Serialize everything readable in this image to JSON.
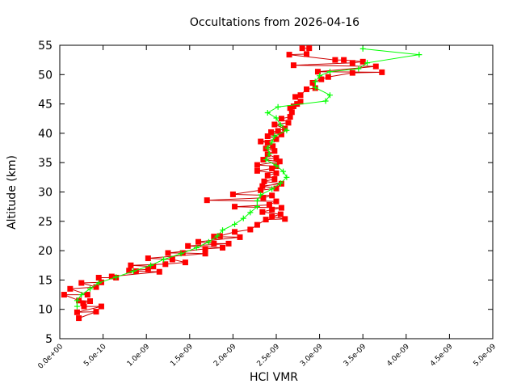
{
  "chart_data": {
    "type": "scatter",
    "title": "Occultations from 2026-04-16",
    "xlabel": "HCl VMR",
    "ylabel": "Altitude (km)",
    "xlim": [
      0,
      5e-09
    ],
    "ylim": [
      5,
      55
    ],
    "x_ticks": [
      "0.0e+00",
      "5.0e-10",
      "1.0e-09",
      "1.5e-09",
      "2.0e-09",
      "2.5e-09",
      "3.0e-09",
      "3.5e-09",
      "4.0e-09",
      "4.5e-09",
      "5.0e-09"
    ],
    "y_ticks": [
      "5",
      "10",
      "15",
      "20",
      "25",
      "30",
      "35",
      "40",
      "45",
      "50",
      "55"
    ],
    "grid": false,
    "legend": "none",
    "series": [
      {
        "marker": "square",
        "color": "#ff0000",
        "line_color": "#cc0000",
        "points": [
          [
            2.8e-09,
            54.5
          ],
          [
            2.88e-09,
            54.5
          ],
          [
            2.85e-09,
            53.5
          ],
          [
            2.65e-09,
            53.4
          ],
          [
            3.18e-09,
            52.5
          ],
          [
            3.28e-09,
            52.5
          ],
          [
            3.5e-09,
            52.2
          ],
          [
            3.38e-09,
            52.0
          ],
          [
            2.7e-09,
            51.6
          ],
          [
            3.65e-09,
            51.4
          ],
          [
            2.98e-09,
            50.5
          ],
          [
            3.72e-09,
            50.4
          ],
          [
            3.38e-09,
            50.3
          ],
          [
            3.1e-09,
            49.6
          ],
          [
            3.02e-09,
            49.2
          ],
          [
            2.92e-09,
            48.6
          ],
          [
            2.95e-09,
            47.7
          ],
          [
            2.85e-09,
            47.5
          ],
          [
            2.78e-09,
            46.5
          ],
          [
            2.72e-09,
            46.2
          ],
          [
            2.78e-09,
            45.4
          ],
          [
            2.74e-09,
            45.0
          ],
          [
            2.7e-09,
            44.6
          ],
          [
            2.66e-09,
            44.3
          ],
          [
            2.68e-09,
            43.6
          ],
          [
            2.66e-09,
            42.8
          ],
          [
            2.56e-09,
            42.5
          ],
          [
            2.64e-09,
            41.8
          ],
          [
            2.48e-09,
            41.5
          ],
          [
            2.6e-09,
            40.8
          ],
          [
            2.52e-09,
            40.4
          ],
          [
            2.44e-09,
            40.2
          ],
          [
            2.56e-09,
            39.8
          ],
          [
            2.4e-09,
            39.5
          ],
          [
            2.5e-09,
            39.0
          ],
          [
            2.32e-09,
            38.6
          ],
          [
            2.4e-09,
            38.4
          ],
          [
            2.46e-09,
            37.8
          ],
          [
            2.38e-09,
            37.4
          ],
          [
            2.48e-09,
            37.0
          ],
          [
            2.4e-09,
            36.4
          ],
          [
            2.5e-09,
            35.8
          ],
          [
            2.35e-09,
            35.5
          ],
          [
            2.54e-09,
            35.2
          ],
          [
            2.28e-09,
            34.6
          ],
          [
            2.5e-09,
            34.4
          ],
          [
            2.45e-09,
            34.0
          ],
          [
            2.28e-09,
            33.6
          ],
          [
            2.5e-09,
            33.2
          ],
          [
            2.4e-09,
            32.8
          ],
          [
            2.48e-09,
            32.2
          ],
          [
            2.36e-09,
            31.8
          ],
          [
            2.56e-09,
            31.4
          ],
          [
            2.34e-09,
            31.0
          ],
          [
            2.5e-09,
            30.6
          ],
          [
            2.32e-09,
            30.3
          ],
          [
            2e-09,
            29.6
          ],
          [
            2.45e-09,
            29.4
          ],
          [
            2.35e-09,
            29.0
          ],
          [
            1.7e-09,
            28.6
          ],
          [
            2.5e-09,
            28.4
          ],
          [
            2.42e-09,
            27.8
          ],
          [
            2.02e-09,
            27.5
          ],
          [
            2.56e-09,
            27.3
          ],
          [
            2.45e-09,
            27.0
          ],
          [
            2.34e-09,
            26.6
          ],
          [
            2.55e-09,
            26.2
          ],
          [
            2.45e-09,
            25.8
          ],
          [
            2.6e-09,
            25.4
          ],
          [
            2.38e-09,
            25.3
          ],
          [
            2.28e-09,
            24.4
          ],
          [
            2.2e-09,
            23.6
          ],
          [
            2.02e-09,
            23.2
          ],
          [
            1.85e-09,
            22.5
          ],
          [
            1.78e-09,
            22.4
          ],
          [
            2.08e-09,
            22.3
          ],
          [
            1.6e-09,
            21.5
          ],
          [
            1.78e-09,
            21.2
          ],
          [
            1.95e-09,
            21.2
          ],
          [
            1.48e-09,
            20.8
          ],
          [
            1.88e-09,
            20.5
          ],
          [
            1.68e-09,
            20.3
          ],
          [
            1.25e-09,
            19.6
          ],
          [
            1.42e-09,
            19.6
          ],
          [
            1.68e-09,
            19.5
          ],
          [
            1.02e-09,
            18.7
          ],
          [
            1.3e-09,
            18.5
          ],
          [
            1.45e-09,
            18.0
          ],
          [
            1.22e-09,
            17.7
          ],
          [
            8.2e-10,
            17.5
          ],
          [
            1.08e-09,
            17.3
          ],
          [
            1.02e-09,
            16.8
          ],
          [
            8e-10,
            16.6
          ],
          [
            8.8e-10,
            16.5
          ],
          [
            1.15e-09,
            16.4
          ],
          [
            6e-10,
            15.6
          ],
          [
            6.5e-10,
            15.4
          ],
          [
            4.5e-10,
            15.4
          ],
          [
            4.8e-10,
            14.6
          ],
          [
            2.5e-10,
            14.5
          ],
          [
            4.2e-10,
            13.8
          ],
          [
            1.2e-10,
            13.5
          ],
          [
            3.2e-10,
            12.5
          ],
          [
            5e-11,
            12.5
          ],
          [
            2.2e-10,
            11.5
          ],
          [
            3.5e-10,
            11.4
          ],
          [
            2.7e-10,
            11.0
          ],
          [
            2.8e-10,
            10.5
          ],
          [
            4.8e-10,
            10.5
          ],
          [
            2e-10,
            9.5
          ],
          [
            4.2e-10,
            9.6
          ],
          [
            2.2e-10,
            8.5
          ]
        ]
      },
      {
        "marker": "plus",
        "color": "#00ff00",
        "points": [
          [
            3.5e-09,
            54.4
          ],
          [
            4.15e-09,
            53.4
          ],
          [
            3.55e-09,
            52.0
          ],
          [
            3.45e-09,
            51.0
          ],
          [
            3.12e-09,
            50.5
          ],
          [
            3e-09,
            49.8
          ],
          [
            2.95e-09,
            48.8
          ],
          [
            2.95e-09,
            47.8
          ],
          [
            3.12e-09,
            46.5
          ],
          [
            3.07e-09,
            45.5
          ],
          [
            2.52e-09,
            44.5
          ],
          [
            2.4e-09,
            43.5
          ],
          [
            2.5e-09,
            42.6
          ],
          [
            2.55e-09,
            41.4
          ],
          [
            2.62e-09,
            40.5
          ],
          [
            2.48e-09,
            39.5
          ],
          [
            2.45e-09,
            38.5
          ],
          [
            2.4e-09,
            37.5
          ],
          [
            2.42e-09,
            36.5
          ],
          [
            2.38e-09,
            35.5
          ],
          [
            2.5e-09,
            34.5
          ],
          [
            2.58e-09,
            33.5
          ],
          [
            2.62e-09,
            32.5
          ],
          [
            2.55e-09,
            31.5
          ],
          [
            2.45e-09,
            30.5
          ],
          [
            2.32e-09,
            29.5
          ],
          [
            2.28e-09,
            28.5
          ],
          [
            2.28e-09,
            27.5
          ],
          [
            2.2e-09,
            26.5
          ],
          [
            2.12e-09,
            25.5
          ],
          [
            2.02e-09,
            24.5
          ],
          [
            1.88e-09,
            23.5
          ],
          [
            1.82e-09,
            22.5
          ],
          [
            1.72e-09,
            21.5
          ],
          [
            1.58e-09,
            20.5
          ],
          [
            1.4e-09,
            19.5
          ],
          [
            1.2e-09,
            18.5
          ],
          [
            1.05e-09,
            17.5
          ],
          [
            8.5e-10,
            16.5
          ],
          [
            6.5e-10,
            15.5
          ],
          [
            4.5e-10,
            14.5
          ],
          [
            3.5e-10,
            13.5
          ],
          [
            2.5e-10,
            12.5
          ],
          [
            2e-10,
            11.5
          ],
          [
            2e-10,
            10.5
          ]
        ]
      }
    ]
  }
}
